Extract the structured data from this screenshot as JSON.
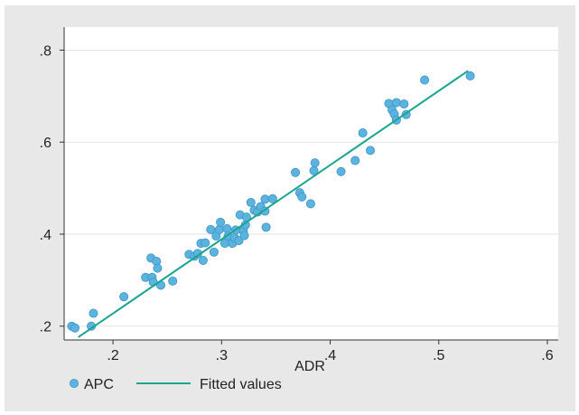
{
  "chart_data": {
    "type": "scatter",
    "xlabel": "ADR",
    "ylabel": "",
    "xlim": [
      0.155,
      0.61
    ],
    "ylim": [
      0.17,
      0.85
    ],
    "x_ticks": [
      0.2,
      0.3,
      0.4,
      0.5,
      0.6
    ],
    "x_tick_labels": [
      ".2",
      ".3",
      ".4",
      ".5",
      ".6"
    ],
    "y_ticks": [
      0.2,
      0.4,
      0.6,
      0.8
    ],
    "y_tick_labels": [
      ".2",
      ".4",
      ".6",
      ".8"
    ],
    "grid": "horizontal",
    "legend_position": "bottom",
    "series": [
      {
        "name": "APC",
        "kind": "scatter",
        "color": "#5bb3e0",
        "points": [
          [
            0.162,
            0.2
          ],
          [
            0.165,
            0.196
          ],
          [
            0.18,
            0.2
          ],
          [
            0.182,
            0.228
          ],
          [
            0.21,
            0.264
          ],
          [
            0.23,
            0.306
          ],
          [
            0.235,
            0.348
          ],
          [
            0.236,
            0.306
          ],
          [
            0.237,
            0.296
          ],
          [
            0.24,
            0.341
          ],
          [
            0.241,
            0.326
          ],
          [
            0.244,
            0.289
          ],
          [
            0.255,
            0.298
          ],
          [
            0.27,
            0.356
          ],
          [
            0.275,
            0.352
          ],
          [
            0.278,
            0.358
          ],
          [
            0.281,
            0.38
          ],
          [
            0.283,
            0.343
          ],
          [
            0.285,
            0.381
          ],
          [
            0.29,
            0.41
          ],
          [
            0.293,
            0.361
          ],
          [
            0.295,
            0.396
          ],
          [
            0.298,
            0.41
          ],
          [
            0.299,
            0.426
          ],
          [
            0.303,
            0.38
          ],
          [
            0.305,
            0.412
          ],
          [
            0.306,
            0.396
          ],
          [
            0.31,
            0.38
          ],
          [
            0.312,
            0.392
          ],
          [
            0.313,
            0.409
          ],
          [
            0.316,
            0.386
          ],
          [
            0.317,
            0.442
          ],
          [
            0.32,
            0.407
          ],
          [
            0.321,
            0.397
          ],
          [
            0.322,
            0.42
          ],
          [
            0.323,
            0.437
          ],
          [
            0.327,
            0.469
          ],
          [
            0.33,
            0.452
          ],
          [
            0.333,
            0.448
          ],
          [
            0.336,
            0.46
          ],
          [
            0.34,
            0.45
          ],
          [
            0.34,
            0.476
          ],
          [
            0.341,
            0.415
          ],
          [
            0.347,
            0.477
          ],
          [
            0.368,
            0.534
          ],
          [
            0.372,
            0.49
          ],
          [
            0.374,
            0.481
          ],
          [
            0.382,
            0.466
          ],
          [
            0.385,
            0.538
          ],
          [
            0.386,
            0.555
          ],
          [
            0.41,
            0.536
          ],
          [
            0.423,
            0.56
          ],
          [
            0.43,
            0.62
          ],
          [
            0.437,
            0.582
          ],
          [
            0.454,
            0.684
          ],
          [
            0.457,
            0.67
          ],
          [
            0.459,
            0.661
          ],
          [
            0.461,
            0.686
          ],
          [
            0.461,
            0.648
          ],
          [
            0.468,
            0.683
          ],
          [
            0.47,
            0.66
          ],
          [
            0.487,
            0.735
          ],
          [
            0.529,
            0.744
          ]
        ]
      },
      {
        "name": "Fitted values",
        "kind": "line",
        "color": "#1aa58f",
        "points": [
          [
            0.168,
            0.176
          ],
          [
            0.527,
            0.755
          ]
        ]
      }
    ]
  }
}
